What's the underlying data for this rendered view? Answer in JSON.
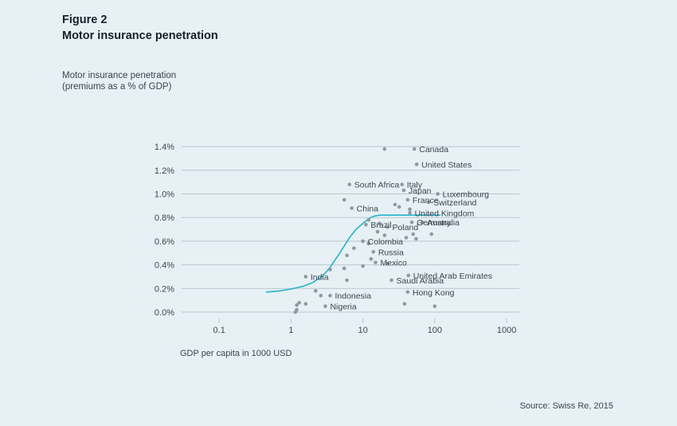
{
  "figure": {
    "number": "Figure 2",
    "title": "Motor insurance penetration",
    "ylabel_line1": "Motor insurance penetration",
    "ylabel_line2": "(premiums as a % of GDP)",
    "xlabel": "GDP per capita in 1000 USD",
    "source": "Source: Swiss Re, 2015"
  },
  "chart_data": {
    "type": "scatter",
    "x_scale": "log",
    "xlim": [
      0.03,
      1500
    ],
    "ylim": [
      -0.1,
      1.45
    ],
    "x_ticks": [
      {
        "value": 0.1,
        "label": "0.1"
      },
      {
        "value": 1,
        "label": "1"
      },
      {
        "value": 10,
        "label": "10"
      },
      {
        "value": 100,
        "label": "100"
      },
      {
        "value": 1000,
        "label": "1000"
      }
    ],
    "y_ticks": [
      {
        "value": 0.0,
        "label": "0.0%"
      },
      {
        "value": 0.2,
        "label": "0.2%"
      },
      {
        "value": 0.4,
        "label": "0.4%"
      },
      {
        "value": 0.6,
        "label": "0.6%"
      },
      {
        "value": 0.8,
        "label": "0.8%"
      },
      {
        "value": 1.0,
        "label": "1.0%"
      },
      {
        "value": 1.2,
        "label": "1.2%"
      },
      {
        "value": 1.4,
        "label": "1.4%"
      }
    ],
    "grid": "horizontal",
    "colors": {
      "points": "#8f999f",
      "curve": "#27b3c8",
      "grid": "#b9c6cd"
    },
    "labeled_points": [
      {
        "label": "Canada",
        "x": 52,
        "y": 1.38
      },
      {
        "label": "United States",
        "x": 56,
        "y": 1.25
      },
      {
        "label": "South Africa",
        "x": 6.5,
        "y": 1.08
      },
      {
        "label": "Italy",
        "x": 35,
        "y": 1.08
      },
      {
        "label": "Japan",
        "x": 37,
        "y": 1.03
      },
      {
        "label": "Luxembourg",
        "x": 110,
        "y": 1.0
      },
      {
        "label": "France",
        "x": 42,
        "y": 0.95
      },
      {
        "label": "Switzerland",
        "x": 82,
        "y": 0.93
      },
      {
        "label": "China",
        "x": 7,
        "y": 0.88
      },
      {
        "label": "United Kingdom",
        "x": 45,
        "y": 0.84
      },
      {
        "label": "Germany",
        "x": 48,
        "y": 0.76
      },
      {
        "label": "Australia",
        "x": 67,
        "y": 0.76
      },
      {
        "label": "Brazil",
        "x": 11,
        "y": 0.74
      },
      {
        "label": "Poland",
        "x": 22,
        "y": 0.72
      },
      {
        "label": "Colombia",
        "x": 10,
        "y": 0.6
      },
      {
        "label": "Russia",
        "x": 14,
        "y": 0.51
      },
      {
        "label": "Mexico",
        "x": 15,
        "y": 0.42
      },
      {
        "label": "India",
        "x": 1.6,
        "y": 0.3
      },
      {
        "label": "United Arab Emirates",
        "x": 43,
        "y": 0.31
      },
      {
        "label": "Saudi Arabia",
        "x": 25,
        "y": 0.27
      },
      {
        "label": "Hong Kong",
        "x": 42,
        "y": 0.17
      },
      {
        "label": "Indonesia",
        "x": 3.5,
        "y": 0.14
      },
      {
        "label": "Nigeria",
        "x": 3.0,
        "y": 0.05
      }
    ],
    "unlabeled_points": [
      {
        "x": 20,
        "y": 1.38
      },
      {
        "x": 5.5,
        "y": 0.95
      },
      {
        "x": 28,
        "y": 0.91
      },
      {
        "x": 32,
        "y": 0.89
      },
      {
        "x": 45,
        "y": 0.87
      },
      {
        "x": 12,
        "y": 0.78
      },
      {
        "x": 17,
        "y": 0.75
      },
      {
        "x": 16,
        "y": 0.68
      },
      {
        "x": 20,
        "y": 0.65
      },
      {
        "x": 40,
        "y": 0.63
      },
      {
        "x": 50,
        "y": 0.66
      },
      {
        "x": 55,
        "y": 0.62
      },
      {
        "x": 90,
        "y": 0.66
      },
      {
        "x": 12,
        "y": 0.58
      },
      {
        "x": 7.5,
        "y": 0.54
      },
      {
        "x": 6,
        "y": 0.48
      },
      {
        "x": 13,
        "y": 0.45
      },
      {
        "x": 10,
        "y": 0.39
      },
      {
        "x": 22,
        "y": 0.41
      },
      {
        "x": 5.5,
        "y": 0.37
      },
      {
        "x": 3.5,
        "y": 0.36
      },
      {
        "x": 6,
        "y": 0.27
      },
      {
        "x": 2.2,
        "y": 0.18
      },
      {
        "x": 2.6,
        "y": 0.14
      },
      {
        "x": 1.3,
        "y": 0.08
      },
      {
        "x": 1.6,
        "y": 0.07
      },
      {
        "x": 1.2,
        "y": 0.06
      },
      {
        "x": 1.2,
        "y": 0.02
      },
      {
        "x": 1.15,
        "y": 0.0
      },
      {
        "x": 38,
        "y": 0.07
      },
      {
        "x": 100,
        "y": 0.05
      }
    ],
    "trend_curve": [
      {
        "x": 0.45,
        "y": 0.17
      },
      {
        "x": 0.7,
        "y": 0.18
      },
      {
        "x": 1.0,
        "y": 0.195
      },
      {
        "x": 1.5,
        "y": 0.22
      },
      {
        "x": 2.0,
        "y": 0.25
      },
      {
        "x": 2.8,
        "y": 0.31
      },
      {
        "x": 3.5,
        "y": 0.38
      },
      {
        "x": 5.0,
        "y": 0.52
      },
      {
        "x": 6.5,
        "y": 0.63
      },
      {
        "x": 8.0,
        "y": 0.7
      },
      {
        "x": 10,
        "y": 0.75
      },
      {
        "x": 12,
        "y": 0.79
      },
      {
        "x": 14,
        "y": 0.81
      },
      {
        "x": 17,
        "y": 0.82
      },
      {
        "x": 30,
        "y": 0.82
      },
      {
        "x": 60,
        "y": 0.82
      },
      {
        "x": 120,
        "y": 0.82
      }
    ]
  }
}
